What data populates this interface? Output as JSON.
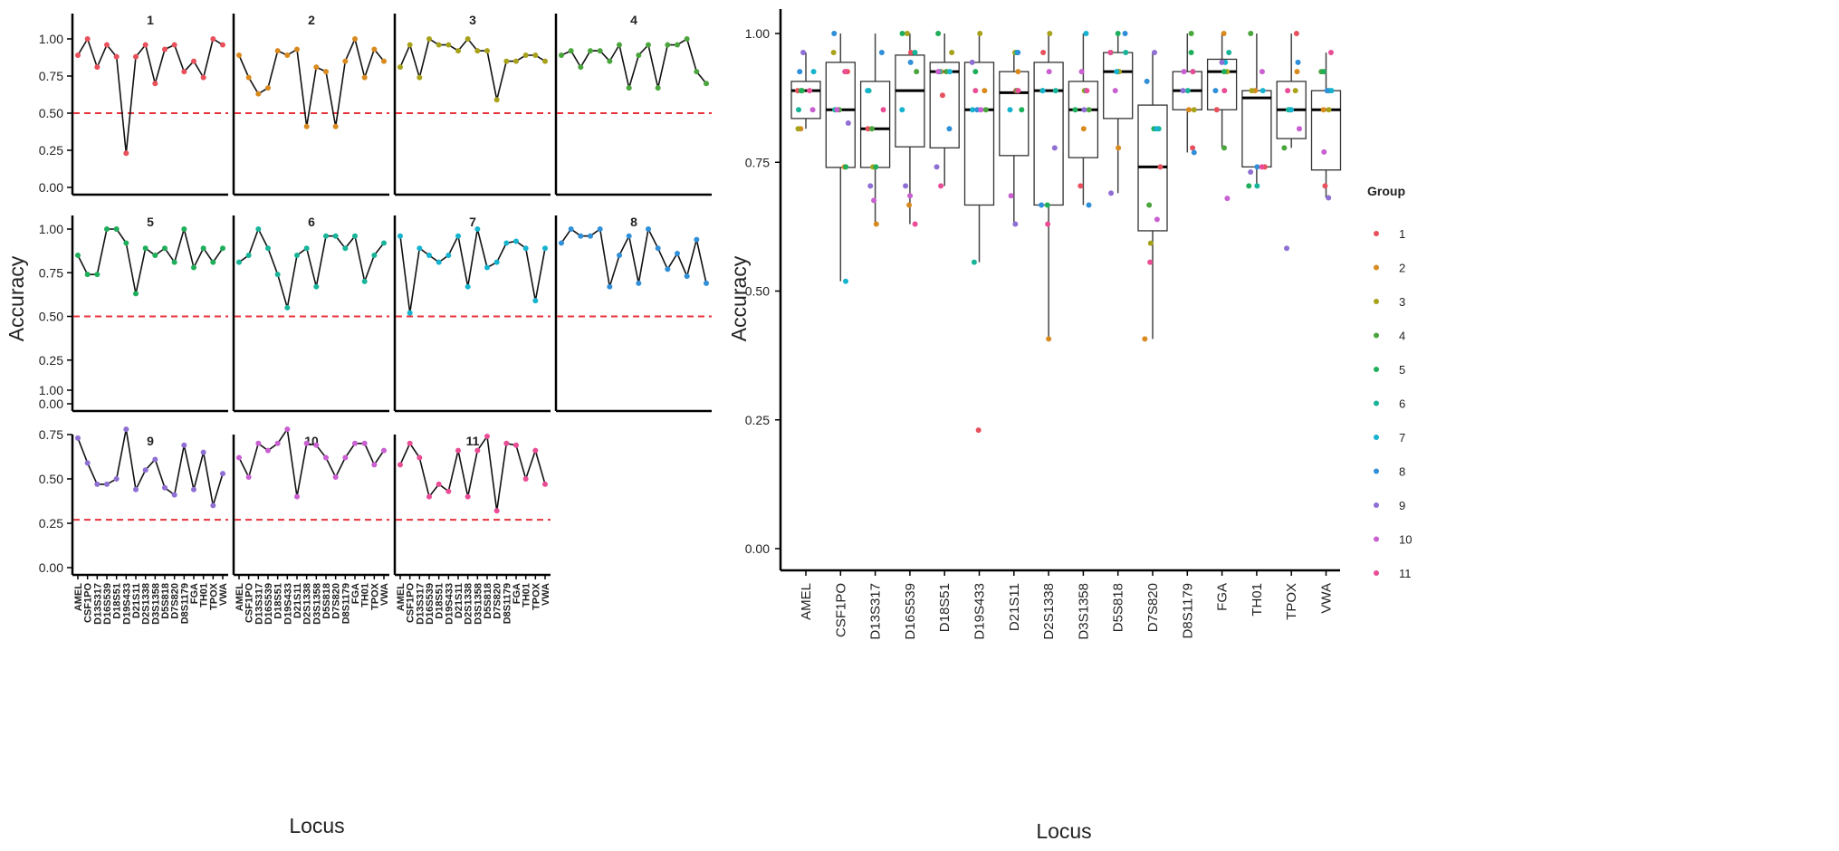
{
  "colors": {
    "group": [
      "#e8505b",
      "#d98a1f",
      "#a8a21b",
      "#4aa53c",
      "#1fae5a",
      "#18b49a",
      "#16b3cf",
      "#2f8fd8",
      "#8f6fd3",
      "#c95fd0",
      "#ea4d95"
    ],
    "threshold": "#e8333c",
    "line": "#111111"
  },
  "chart_data": [
    {
      "type": "line",
      "subtype": "faceted",
      "ylabel": "Accuracy",
      "xlabel": "Locus",
      "loci": [
        "AMEL",
        "CSF1PO",
        "D13S317",
        "D16S539",
        "D18S51",
        "D19S433",
        "D21S11",
        "D2S1338",
        "D3S1358",
        "D5S818",
        "D7S820",
        "D8S1179",
        "FGA",
        "TH01",
        "TPOX",
        "VWA"
      ],
      "facets": [
        {
          "label": "1",
          "ylim": [
            0,
            1
          ],
          "threshold": 0.5,
          "values": [
            0.89,
            1.0,
            0.81,
            0.96,
            0.88,
            0.23,
            0.88,
            0.96,
            0.7,
            0.93,
            0.96,
            0.78,
            0.85,
            0.74,
            1.0,
            0.96
          ]
        },
        {
          "label": "2",
          "ylim": [
            0,
            1
          ],
          "threshold": 0.5,
          "values": [
            0.89,
            0.74,
            0.63,
            0.67,
            0.92,
            0.89,
            0.93,
            0.41,
            0.81,
            0.78,
            0.41,
            0.85,
            1.0,
            0.74,
            0.93,
            0.85
          ]
        },
        {
          "label": "3",
          "ylim": [
            0,
            1
          ],
          "threshold": 0.5,
          "values": [
            0.81,
            0.96,
            0.74,
            1.0,
            0.96,
            0.96,
            0.92,
            1.0,
            0.92,
            0.92,
            0.59,
            0.85,
            0.85,
            0.89,
            0.89,
            0.85
          ]
        },
        {
          "label": "4",
          "ylim": [
            0,
            1
          ],
          "threshold": 0.5,
          "values": [
            0.89,
            0.92,
            0.81,
            0.92,
            0.92,
            0.85,
            0.96,
            0.67,
            0.89,
            0.96,
            0.67,
            0.96,
            0.96,
            1.0,
            0.78,
            0.7
          ]
        },
        {
          "label": "5",
          "ylim": [
            0,
            1
          ],
          "threshold": 0.5,
          "values": [
            0.85,
            0.74,
            0.74,
            1.0,
            1.0,
            0.92,
            0.63,
            0.89,
            0.85,
            0.89,
            0.81,
            1.0,
            0.78,
            0.89,
            0.81,
            0.89
          ]
        },
        {
          "label": "6",
          "ylim": [
            0,
            1
          ],
          "threshold": 0.5,
          "values": [
            0.81,
            0.85,
            1.0,
            0.89,
            0.74,
            0.55,
            0.85,
            0.89,
            0.67,
            0.96,
            0.96,
            0.89,
            0.96,
            0.7,
            0.85,
            0.92
          ]
        },
        {
          "label": "7",
          "ylim": [
            0,
            1
          ],
          "threshold": 0.5,
          "values": [
            0.96,
            0.52,
            0.89,
            0.85,
            0.81,
            0.85,
            0.96,
            0.67,
            1.0,
            0.78,
            0.81,
            0.92,
            0.93,
            0.89,
            0.59,
            0.89
          ]
        },
        {
          "label": "8",
          "ylim": [
            0,
            1
          ],
          "threshold": 0.5,
          "values": [
            0.92,
            1.0,
            0.96,
            0.96,
            1.0,
            0.67,
            0.85,
            0.96,
            0.69,
            1.0,
            0.89,
            0.77,
            0.86,
            0.73,
            0.94,
            0.69
          ]
        },
        {
          "label": "9",
          "ylim": [
            0,
            1
          ],
          "threshold": 0.27,
          "values": [
            0.73,
            0.59,
            0.47,
            0.47,
            0.5,
            0.78,
            0.44,
            0.55,
            0.61,
            0.45,
            0.41,
            0.69,
            0.44,
            0.65,
            0.35,
            0.53
          ]
        },
        {
          "label": "10",
          "ylim": [
            0,
            1
          ],
          "threshold": 0.27,
          "values": [
            0.62,
            0.51,
            0.7,
            0.66,
            0.7,
            0.78,
            0.4,
            0.7,
            0.69,
            0.62,
            0.51,
            0.62,
            0.7,
            0.7,
            0.58,
            0.66
          ]
        },
        {
          "label": "11",
          "ylim": [
            0,
            1
          ],
          "threshold": 0.27,
          "values": [
            0.58,
            0.7,
            0.62,
            0.4,
            0.47,
            0.43,
            0.66,
            0.4,
            0.66,
            0.74,
            0.32,
            0.7,
            0.69,
            0.5,
            0.66,
            0.47
          ]
        }
      ],
      "yticks_top": [
        "0.00",
        "0.25",
        "0.50",
        "0.75",
        "1.00"
      ],
      "yticks_bottom": [
        "0.00",
        "0.25",
        "0.50",
        "0.75",
        "1.00"
      ]
    },
    {
      "type": "box",
      "ylabel": "Accuracy",
      "xlabel": "Locus",
      "ylim": [
        0,
        1
      ],
      "yticks": [
        "0.00",
        "0.25",
        "0.50",
        "0.75",
        "1.00"
      ],
      "legend": {
        "title": "Group",
        "position": "right",
        "entries": [
          "1",
          "2",
          "3",
          "4",
          "5",
          "6",
          "7",
          "8",
          "9",
          "10",
          "11"
        ]
      },
      "categories": [
        "AMEL",
        "CSF1PO",
        "D13S317",
        "D16S539",
        "D18S51",
        "D19S433",
        "D21S11",
        "D2S1338",
        "D3S1358",
        "D5S818",
        "D7S820",
        "D8S1179",
        "FGA",
        "TH01",
        "TPOX",
        "VWA"
      ],
      "boxes": [
        {
          "q1": 0.835,
          "median": 0.889,
          "q3": 0.907,
          "lower": 0.815,
          "upper": 0.963
        },
        {
          "q1": 0.74,
          "median": 0.852,
          "q3": 0.944,
          "lower": 0.519,
          "upper": 1.0
        },
        {
          "q1": 0.74,
          "median": 0.815,
          "q3": 0.907,
          "lower": 0.63,
          "upper": 1.0
        },
        {
          "q1": 0.78,
          "median": 0.889,
          "q3": 0.958,
          "lower": 0.63,
          "upper": 1.0
        },
        {
          "q1": 0.778,
          "median": 0.926,
          "q3": 0.944,
          "lower": 0.704,
          "upper": 1.0
        },
        {
          "q1": 0.667,
          "median": 0.852,
          "q3": 0.944,
          "lower": 0.556,
          "upper": 1.0
        },
        {
          "q1": 0.763,
          "median": 0.885,
          "q3": 0.926,
          "lower": 0.63,
          "upper": 0.963
        },
        {
          "q1": 0.667,
          "median": 0.889,
          "q3": 0.944,
          "lower": 0.407,
          "upper": 1.0
        },
        {
          "q1": 0.759,
          "median": 0.852,
          "q3": 0.907,
          "lower": 0.667,
          "upper": 1.0
        },
        {
          "q1": 0.835,
          "median": 0.926,
          "q3": 0.963,
          "lower": 0.69,
          "upper": 1.0
        },
        {
          "q1": 0.617,
          "median": 0.741,
          "q3": 0.861,
          "lower": 0.407,
          "upper": 0.963
        },
        {
          "q1": 0.852,
          "median": 0.889,
          "q3": 0.926,
          "lower": 0.769,
          "upper": 1.0
        },
        {
          "q1": 0.852,
          "median": 0.926,
          "q3": 0.95,
          "lower": 0.778,
          "upper": 1.0
        },
        {
          "q1": 0.741,
          "median": 0.875,
          "q3": 0.889,
          "lower": 0.704,
          "upper": 1.0
        },
        {
          "q1": 0.796,
          "median": 0.852,
          "q3": 0.907,
          "lower": 0.778,
          "upper": 1.0
        },
        {
          "q1": 0.735,
          "median": 0.852,
          "q3": 0.889,
          "lower": 0.681,
          "upper": 0.963
        }
      ],
      "points": [
        [
          [
            0.889,
            0
          ],
          [
            0.815,
            1
          ],
          [
            0.815,
            2
          ],
          [
            0.889,
            3
          ],
          [
            0.889,
            4
          ],
          [
            0.852,
            5
          ],
          [
            0.926,
            6
          ],
          [
            0.926,
            7
          ],
          [
            0.963,
            8
          ],
          [
            0.852,
            9
          ],
          [
            0.889,
            10
          ]
        ],
        [
          [
            0.926,
            0
          ],
          [
            0.741,
            1
          ],
          [
            0.963,
            2
          ],
          [
            0.852,
            3
          ],
          [
            0.741,
            4
          ],
          [
            0.852,
            5
          ],
          [
            0.519,
            6
          ],
          [
            1.0,
            7
          ],
          [
            0.826,
            8
          ],
          [
            0.852,
            9
          ],
          [
            0.926,
            10
          ]
        ],
        [
          [
            0.815,
            0
          ],
          [
            0.63,
            1
          ],
          [
            0.741,
            2
          ],
          [
            0.815,
            3
          ],
          [
            0.741,
            4
          ],
          [
            0.889,
            5
          ],
          [
            0.889,
            6
          ],
          [
            0.963,
            7
          ],
          [
            0.704,
            8
          ],
          [
            0.676,
            9
          ],
          [
            0.852,
            10
          ]
        ],
        [
          [
            0.963,
            0
          ],
          [
            0.667,
            1
          ],
          [
            1.0,
            2
          ],
          [
            0.926,
            3
          ],
          [
            1.0,
            4
          ],
          [
            0.963,
            5
          ],
          [
            0.852,
            6
          ],
          [
            0.944,
            7
          ],
          [
            0.704,
            8
          ],
          [
            0.685,
            9
          ],
          [
            0.63,
            10
          ]
        ],
        [
          [
            0.88,
            0
          ],
          [
            0.926,
            1
          ],
          [
            0.963,
            2
          ],
          [
            0.926,
            3
          ],
          [
            1.0,
            4
          ],
          [
            0.926,
            5
          ],
          [
            0.926,
            6
          ],
          [
            0.815,
            7
          ],
          [
            0.741,
            8
          ],
          [
            0.926,
            9
          ],
          [
            0.704,
            10
          ]
        ],
        [
          [
            0.23,
            0
          ],
          [
            0.889,
            1
          ],
          [
            1.0,
            2
          ],
          [
            0.852,
            3
          ],
          [
            0.926,
            4
          ],
          [
            0.556,
            5
          ],
          [
            0.852,
            6
          ],
          [
            0.852,
            7
          ],
          [
            0.944,
            8
          ],
          [
            0.852,
            9
          ],
          [
            0.889,
            10
          ]
        ],
        [
          [
            0.889,
            0
          ],
          [
            0.926,
            1
          ],
          [
            0.963,
            2
          ],
          [
            0.889,
            3
          ],
          [
            0.852,
            4
          ],
          [
            0.963,
            5
          ],
          [
            0.852,
            6
          ],
          [
            0.963,
            7
          ],
          [
            0.63,
            8
          ],
          [
            0.685,
            9
          ],
          [
            0.889,
            10
          ]
        ],
        [
          [
            0.963,
            0
          ],
          [
            0.407,
            1
          ],
          [
            1.0,
            2
          ],
          [
            0.889,
            3
          ],
          [
            0.667,
            4
          ],
          [
            0.889,
            5
          ],
          [
            0.889,
            6
          ],
          [
            0.667,
            7
          ],
          [
            0.778,
            8
          ],
          [
            0.926,
            9
          ],
          [
            0.63,
            10
          ]
        ],
        [
          [
            0.704,
            0
          ],
          [
            0.815,
            1
          ],
          [
            0.889,
            2
          ],
          [
            0.852,
            3
          ],
          [
            0.852,
            4
          ],
          [
            0.889,
            5
          ],
          [
            1.0,
            6
          ],
          [
            0.667,
            7
          ],
          [
            0.852,
            8
          ],
          [
            0.926,
            9
          ],
          [
            0.889,
            10
          ]
        ],
        [
          [
            0.926,
            0
          ],
          [
            0.778,
            1
          ],
          [
            0.926,
            2
          ],
          [
            0.963,
            3
          ],
          [
            1.0,
            4
          ],
          [
            0.963,
            5
          ],
          [
            0.926,
            6
          ],
          [
            1.0,
            7
          ],
          [
            0.69,
            8
          ],
          [
            0.889,
            9
          ],
          [
            0.963,
            10
          ]
        ],
        [
          [
            0.741,
            0
          ],
          [
            0.407,
            1
          ],
          [
            0.593,
            2
          ],
          [
            0.667,
            3
          ],
          [
            0.815,
            4
          ],
          [
            0.815,
            5
          ],
          [
            0.815,
            6
          ],
          [
            0.907,
            7
          ],
          [
            0.963,
            8
          ],
          [
            0.639,
            9
          ],
          [
            0.556,
            10
          ]
        ],
        [
          [
            0.778,
            0
          ],
          [
            0.852,
            1
          ],
          [
            0.852,
            2
          ],
          [
            1.0,
            3
          ],
          [
            0.963,
            4
          ],
          [
            0.889,
            5
          ],
          [
            0.926,
            6
          ],
          [
            0.769,
            7
          ],
          [
            0.889,
            8
          ],
          [
            0.926,
            9
          ],
          [
            0.926,
            10
          ]
        ],
        [
          [
            0.852,
            0
          ],
          [
            1.0,
            1
          ],
          [
            0.926,
            2
          ],
          [
            0.778,
            3
          ],
          [
            0.926,
            4
          ],
          [
            0.963,
            5
          ],
          [
            0.944,
            6
          ],
          [
            0.889,
            7
          ],
          [
            0.944,
            8
          ],
          [
            0.68,
            9
          ],
          [
            0.889,
            10
          ]
        ],
        [
          [
            0.741,
            0
          ],
          [
            0.889,
            1
          ],
          [
            0.889,
            2
          ],
          [
            1.0,
            3
          ],
          [
            0.704,
            4
          ],
          [
            0.704,
            5
          ],
          [
            0.889,
            6
          ],
          [
            0.741,
            7
          ],
          [
            0.731,
            8
          ],
          [
            0.926,
            9
          ],
          [
            0.741,
            10
          ]
        ],
        [
          [
            1.0,
            0
          ],
          [
            0.926,
            1
          ],
          [
            0.889,
            2
          ],
          [
            0.778,
            3
          ],
          [
            0.852,
            4
          ],
          [
            0.852,
            5
          ],
          [
            0.852,
            6
          ],
          [
            0.944,
            7
          ],
          [
            0.583,
            8
          ],
          [
            0.815,
            9
          ],
          [
            0.889,
            10
          ]
        ],
        [
          [
            0.704,
            0
          ],
          [
            0.852,
            1
          ],
          [
            0.852,
            2
          ],
          [
            0.926,
            3
          ],
          [
            0.926,
            4
          ],
          [
            0.889,
            5
          ],
          [
            0.889,
            6
          ],
          [
            0.889,
            7
          ],
          [
            0.681,
            8
          ],
          [
            0.77,
            9
          ],
          [
            0.963,
            10
          ]
        ]
      ]
    }
  ]
}
